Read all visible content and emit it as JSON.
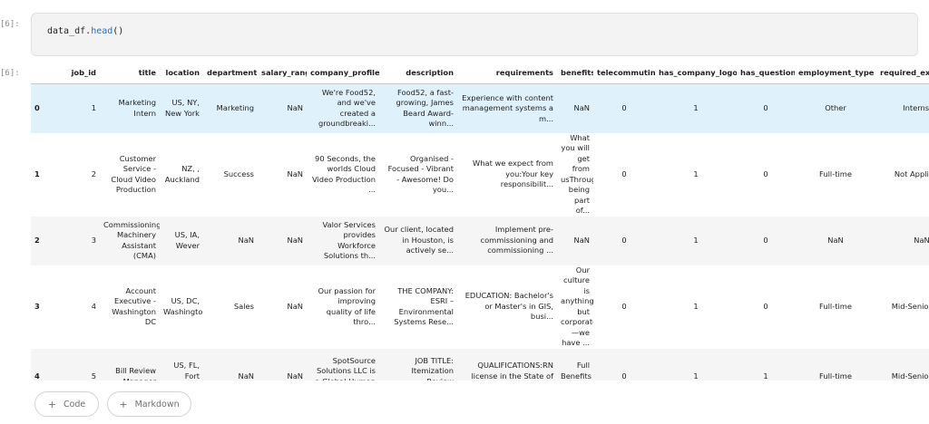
{
  "input_prompt": "[6]:",
  "output_prompt": "[6]:",
  "code": {
    "obj": "data_df",
    "fn": "head",
    "tail": "()"
  },
  "table": {
    "columns": [
      "",
      "job_id",
      "title",
      "location",
      "department",
      "salary_range",
      "company_profile",
      "description",
      "requirements",
      "benefits",
      "telecommuting",
      "has_company_logo",
      "has_questions",
      "employment_type",
      "required_experience",
      "re"
    ],
    "rows": [
      [
        "0",
        "1",
        "Marketing Intern",
        "US, NY, New York",
        "Marketing",
        "NaN",
        "We're Food52, and we've created a groundbreaki...",
        "Food52, a fast-growing, James Beard Award-winn...",
        "Experience with content management systems a m...",
        "NaN",
        "0",
        "1",
        "0",
        "Other",
        "Internship",
        ""
      ],
      [
        "1",
        "2",
        "Customer Service - Cloud Video Production",
        "NZ, , Auckland",
        "Success",
        "NaN",
        "90 Seconds, the worlds Cloud Video Production ...",
        "Organised - Focused - Vibrant - Awesome! Do you...",
        "What we expect from you:Your key responsibilit...",
        "What you will get from usThrough being part of...",
        "0",
        "1",
        "0",
        "Full-time",
        "Not Applicable",
        ""
      ],
      [
        "2",
        "3",
        "Commissioning Machinery Assistant (CMA)",
        "US, IA, Wever",
        "NaN",
        "NaN",
        "Valor Services provides Workforce Solutions th...",
        "Our client, located in Houston, is actively se...",
        "Implement pre-commissioning and commissioning ...",
        "NaN",
        "0",
        "1",
        "0",
        "NaN",
        "NaN",
        ""
      ],
      [
        "3",
        "4",
        "Account Executive - Washington DC",
        "US, DC, Washington",
        "Sales",
        "NaN",
        "Our passion for improving quality of life thro...",
        "THE COMPANY: ESRI – Environmental Systems Rese...",
        "EDUCATION: Bachelor's or Master's in GIS, busi...",
        "Our culture is anything but corporate—we have ...",
        "0",
        "1",
        "0",
        "Full-time",
        "Mid-Senior level",
        ""
      ],
      [
        "4",
        "5",
        "Bill Review Manager",
        "US, FL, Fort Worth",
        "NaN",
        "NaN",
        "SpotSource Solutions LLC is a Global Human Cap...",
        "JOB TITLE: Itemization Review ManagerLOCATION:...",
        "QUALIFICATIONS:RN license in the State of Texa...",
        "Full Benefits Offered",
        "0",
        "1",
        "1",
        "Full-time",
        "Mid-Senior level",
        ""
      ]
    ]
  },
  "buttons": {
    "add_code": "Code",
    "add_markdown": "Markdown",
    "plus": "+"
  }
}
